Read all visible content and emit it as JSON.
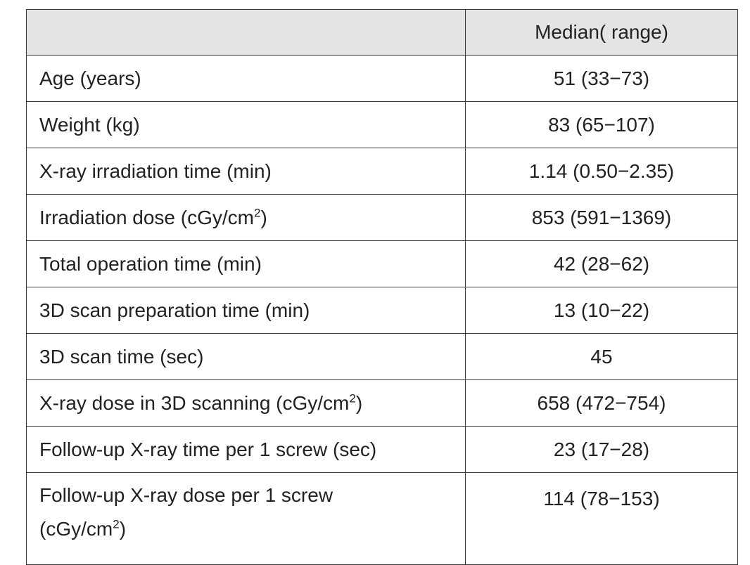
{
  "table": {
    "header": [
      "",
      "Median( range)"
    ],
    "rows": [
      {
        "label": "Age (years)",
        "sup": "",
        "suffix": "",
        "value": "51 (33−73)"
      },
      {
        "label": "Weight (kg)",
        "sup": "",
        "suffix": "",
        "value": "83 (65−107)"
      },
      {
        "label": "X-ray irradiation time (min)",
        "sup": "",
        "suffix": "",
        "value": "1.14 (0.50−2.35)"
      },
      {
        "label": "Irradiation dose (cGy/cm",
        "sup": "2",
        "suffix": ")",
        "value": "853 (591−1369)"
      },
      {
        "label": "Total operation time (min)",
        "sup": "",
        "suffix": "",
        "value": "42 (28−62)"
      },
      {
        "label": "3D scan preparation time (min)",
        "sup": "",
        "suffix": "",
        "value": "13 (10−22)"
      },
      {
        "label": "3D scan time (sec)",
        "sup": "",
        "suffix": "",
        "value": "45"
      },
      {
        "label": "X-ray dose in 3D scanning (cGy/cm",
        "sup": "2",
        "suffix": ")",
        "value": "658 (472−754)"
      },
      {
        "label": "Follow-up X-ray time per 1 screw (sec)",
        "sup": "",
        "suffix": "",
        "value": "23 (17−28)"
      },
      {
        "label": "Follow-up X-ray dose per 1 screw (cGy/cm",
        "sup": "2",
        "suffix": ")",
        "value": "114 (78−153)"
      }
    ]
  }
}
